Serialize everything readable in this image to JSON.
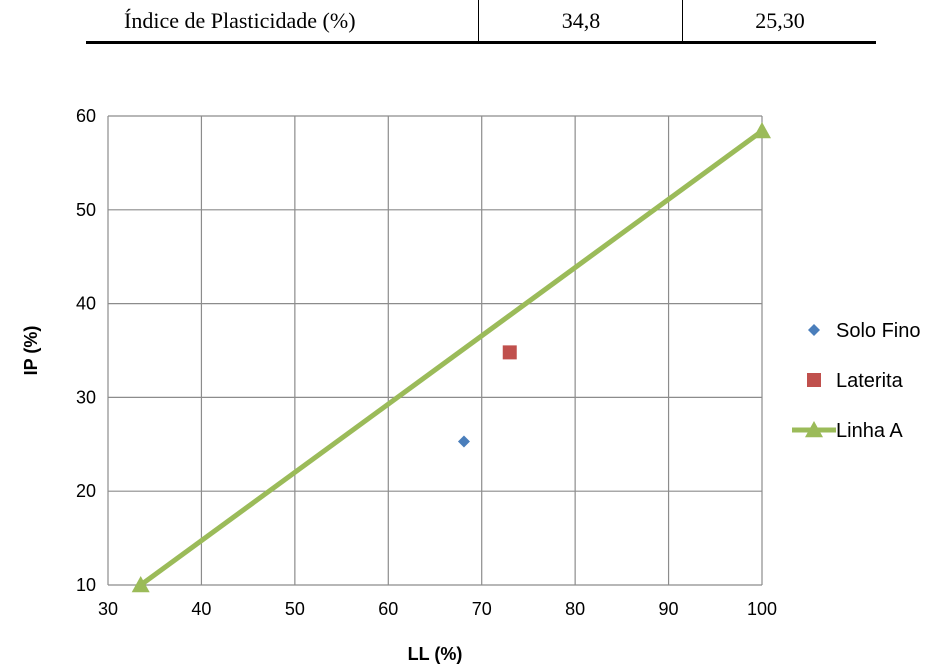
{
  "table": {
    "row_label": "Índice de Plasticidade (%)",
    "value_1": "34,8",
    "value_2": "25,30"
  },
  "chart_data": {
    "type": "scatter",
    "xlabel": "LL (%)",
    "ylabel": "IP (%)",
    "xlim": [
      30,
      100
    ],
    "ylim": [
      10,
      60
    ],
    "xticks": [
      30,
      40,
      50,
      60,
      70,
      80,
      90,
      100
    ],
    "yticks": [
      10,
      20,
      30,
      40,
      50,
      60
    ],
    "grid": true,
    "legend_position": "right",
    "series": [
      {
        "name": "Solo Fino",
        "marker": "diamond",
        "color": "#4a7ebb",
        "points": [
          [
            68.1,
            25.3
          ]
        ]
      },
      {
        "name": "Laterita",
        "marker": "square",
        "color": "#c0504d",
        "points": [
          [
            73.0,
            34.8
          ]
        ]
      },
      {
        "name": "Linha A",
        "marker": "triangle",
        "color": "#9bbb59",
        "line": true,
        "points": [
          [
            33.5,
            10.0
          ],
          [
            100,
            58.4
          ]
        ]
      }
    ]
  }
}
